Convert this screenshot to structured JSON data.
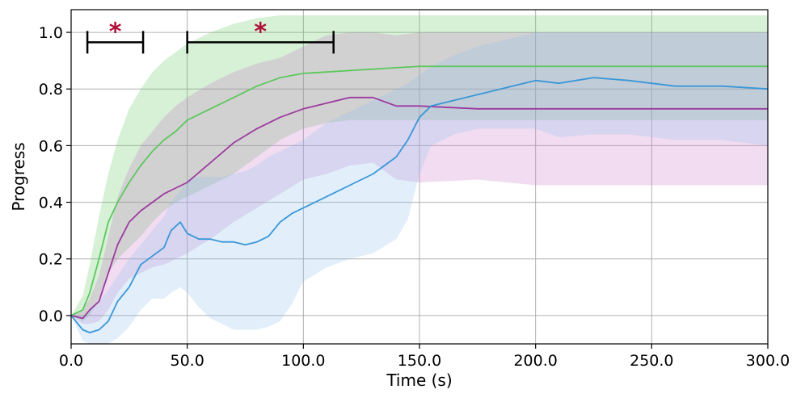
{
  "chart_data": {
    "type": "line",
    "xlabel": "Time (s)",
    "ylabel": "Progress",
    "xlim": [
      0,
      300
    ],
    "ylim": [
      -0.1,
      1.08
    ],
    "xticks": [
      0,
      50,
      100,
      150,
      200,
      250,
      300
    ],
    "xtick_labels": [
      "0.0",
      "50.0",
      "100.0",
      "150.0",
      "200.0",
      "250.0",
      "300.0"
    ],
    "yticks": [
      0.0,
      0.2,
      0.4,
      0.6,
      0.8,
      1.0
    ],
    "ytick_labels": [
      "0.0",
      "0.2",
      "0.4",
      "0.6",
      "0.8",
      "1.0"
    ],
    "grid": true,
    "series": [
      {
        "color": "#5cc85c",
        "band_color": "#5cc85c",
        "x": [
          0,
          5,
          8,
          12,
          16,
          20,
          25,
          30,
          35,
          40,
          45,
          50,
          60,
          70,
          80,
          90,
          100,
          110,
          120,
          130,
          140,
          150,
          175,
          200,
          250,
          300
        ],
        "y": [
          0.0,
          0.02,
          0.08,
          0.2,
          0.33,
          0.4,
          0.47,
          0.53,
          0.58,
          0.62,
          0.65,
          0.69,
          0.73,
          0.77,
          0.81,
          0.84,
          0.855,
          0.86,
          0.865,
          0.87,
          0.875,
          0.88,
          0.88,
          0.88,
          0.88,
          0.88
        ],
        "upper": [
          0.0,
          0.07,
          0.18,
          0.35,
          0.5,
          0.62,
          0.73,
          0.8,
          0.86,
          0.9,
          0.93,
          0.96,
          1.0,
          1.03,
          1.05,
          1.06,
          1.06,
          1.06,
          1.06,
          1.06,
          1.06,
          1.06,
          1.06,
          1.06,
          1.06,
          1.06
        ],
        "lower": [
          0.0,
          -0.02,
          0.0,
          0.06,
          0.15,
          0.2,
          0.24,
          0.28,
          0.33,
          0.37,
          0.4,
          0.42,
          0.46,
          0.5,
          0.56,
          0.62,
          0.66,
          0.68,
          0.69,
          0.69,
          0.69,
          0.69,
          0.69,
          0.69,
          0.69,
          0.69
        ]
      },
      {
        "color": "#9c3aa0",
        "band_color": "#c873c8",
        "x": [
          0,
          5,
          8,
          12,
          16,
          20,
          25,
          30,
          35,
          40,
          45,
          50,
          60,
          70,
          80,
          90,
          100,
          110,
          120,
          130,
          140,
          150,
          175,
          200,
          250,
          300
        ],
        "y": [
          0.0,
          -0.01,
          0.02,
          0.05,
          0.15,
          0.25,
          0.33,
          0.37,
          0.4,
          0.43,
          0.45,
          0.47,
          0.54,
          0.61,
          0.66,
          0.7,
          0.73,
          0.75,
          0.77,
          0.77,
          0.74,
          0.74,
          0.73,
          0.73,
          0.73,
          0.73
        ],
        "upper": [
          0.0,
          0.02,
          0.06,
          0.14,
          0.28,
          0.42,
          0.52,
          0.6,
          0.65,
          0.7,
          0.74,
          0.77,
          0.82,
          0.86,
          0.89,
          0.91,
          0.95,
          0.99,
          1.0,
          1.0,
          0.99,
          1.0,
          1.0,
          1.0,
          1.0,
          1.0
        ],
        "lower": [
          0.0,
          -0.03,
          -0.03,
          -0.02,
          0.02,
          0.08,
          0.13,
          0.15,
          0.17,
          0.18,
          0.2,
          0.22,
          0.27,
          0.33,
          0.38,
          0.43,
          0.48,
          0.5,
          0.53,
          0.54,
          0.48,
          0.47,
          0.48,
          0.46,
          0.46,
          0.46
        ]
      },
      {
        "color": "#3a97d8",
        "band_color": "#8bbfec",
        "x": [
          0,
          5,
          8,
          12,
          16,
          20,
          25,
          30,
          35,
          40,
          43,
          47,
          50,
          55,
          60,
          65,
          70,
          75,
          80,
          85,
          90,
          95,
          100,
          110,
          120,
          130,
          140,
          145,
          150,
          155,
          165,
          175,
          185,
          200,
          210,
          225,
          240,
          260,
          280,
          300
        ],
        "y": [
          0.0,
          -0.05,
          -0.06,
          -0.05,
          -0.02,
          0.05,
          0.1,
          0.18,
          0.21,
          0.24,
          0.3,
          0.33,
          0.29,
          0.27,
          0.27,
          0.26,
          0.26,
          0.25,
          0.26,
          0.28,
          0.33,
          0.36,
          0.38,
          0.42,
          0.46,
          0.5,
          0.56,
          0.62,
          0.7,
          0.74,
          0.76,
          0.78,
          0.8,
          0.83,
          0.82,
          0.84,
          0.83,
          0.81,
          0.81,
          0.8
        ],
        "upper": [
          0.0,
          0.0,
          0.02,
          0.05,
          0.09,
          0.14,
          0.2,
          0.25,
          0.3,
          0.35,
          0.4,
          0.44,
          0.48,
          0.49,
          0.49,
          0.49,
          0.5,
          0.51,
          0.53,
          0.56,
          0.58,
          0.6,
          0.62,
          0.68,
          0.72,
          0.76,
          0.8,
          0.82,
          0.85,
          0.88,
          0.92,
          0.95,
          0.97,
          1.0,
          1.0,
          1.0,
          1.0,
          1.0,
          1.0,
          1.0
        ],
        "lower": [
          0.0,
          -0.09,
          -0.1,
          -0.1,
          -0.1,
          -0.08,
          -0.04,
          0.02,
          0.06,
          0.06,
          0.08,
          0.1,
          0.08,
          0.03,
          -0.01,
          -0.03,
          -0.05,
          -0.05,
          -0.05,
          -0.04,
          -0.02,
          0.04,
          0.12,
          0.17,
          0.2,
          0.22,
          0.27,
          0.34,
          0.5,
          0.6,
          0.64,
          0.66,
          0.66,
          0.66,
          0.63,
          0.64,
          0.64,
          0.62,
          0.62,
          0.6
        ]
      }
    ],
    "annotations": [
      {
        "type": "significance_bracket",
        "x_start": 7,
        "x_end": 31,
        "y": 0.965,
        "label": "*",
        "label_color": "#b0103a"
      },
      {
        "type": "significance_bracket",
        "x_start": 50,
        "x_end": 113,
        "y": 0.965,
        "label": "*",
        "label_color": "#b0103a"
      }
    ]
  }
}
